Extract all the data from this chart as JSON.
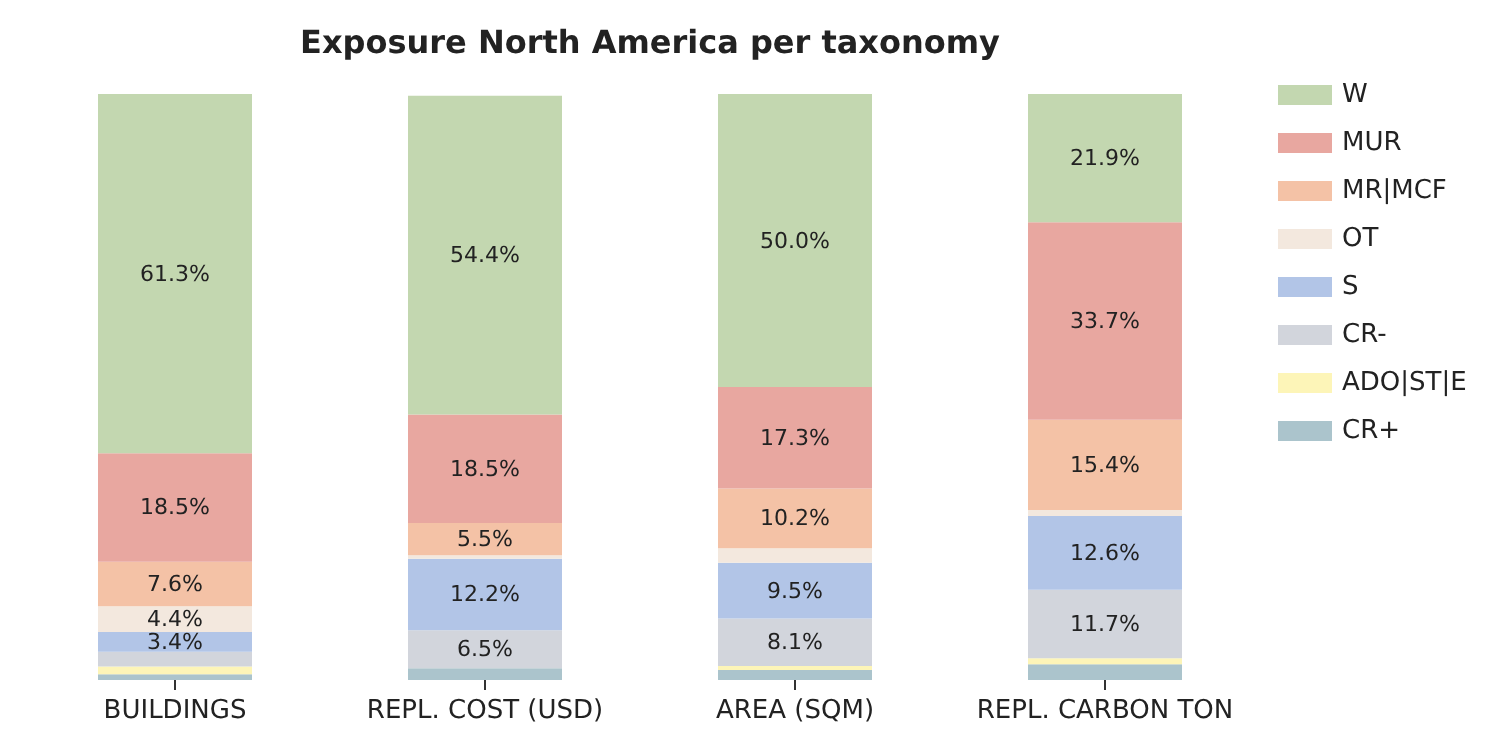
{
  "chart_data": {
    "type": "bar",
    "title": "Exposure North America per taxonomy",
    "categories": [
      "BUILDINGS",
      "REPL. COST (USD)",
      "AREA (SQM)",
      "REPL. CARBON TON"
    ],
    "stacked": true,
    "legend": "right",
    "tick_labels": "x",
    "series": [
      {
        "name": "CR+",
        "color": "#abc4cc",
        "values": [
          1.0,
          2.0,
          1.7,
          2.7
        ],
        "value_labels": [
          null,
          null,
          null,
          null
        ]
      },
      {
        "name": "ADO|ST|E",
        "color": "#fdf5b8",
        "values": [
          1.3,
          null,
          0.7,
          1.0
        ],
        "value_labels": [
          null,
          null,
          null,
          null
        ]
      },
      {
        "name": "CR-",
        "color": "#d2d5dc",
        "values": [
          2.5,
          6.5,
          8.1,
          11.7
        ],
        "value_labels": [
          null,
          "6.5%",
          "8.1%",
          "11.7%"
        ]
      },
      {
        "name": "S",
        "color": "#b2c5e7",
        "values": [
          3.4,
          12.2,
          9.5,
          12.6
        ],
        "value_labels": [
          "3.4%",
          "12.2%",
          "9.5%",
          "12.6%"
        ]
      },
      {
        "name": "OT",
        "color": "#f3e8de",
        "values": [
          4.4,
          0.6,
          2.5,
          1.0
        ],
        "value_labels": [
          "4.4%",
          null,
          null,
          null
        ]
      },
      {
        "name": "MR|MCF",
        "color": "#f4c2a6",
        "values": [
          7.6,
          5.5,
          10.2,
          15.4
        ],
        "value_labels": [
          "7.6%",
          "5.5%",
          "10.2%",
          "15.4%"
        ]
      },
      {
        "name": "MUR",
        "color": "#e8a7a0",
        "values": [
          18.5,
          18.5,
          17.3,
          33.7
        ],
        "value_labels": [
          "18.5%",
          "18.5%",
          "17.3%",
          "33.7%"
        ]
      },
      {
        "name": "W",
        "color": "#c3d7b0",
        "values": [
          61.3,
          54.4,
          50.0,
          21.9
        ],
        "value_labels": [
          "61.3%",
          "54.4%",
          "50.0%",
          "21.9%"
        ]
      }
    ]
  }
}
